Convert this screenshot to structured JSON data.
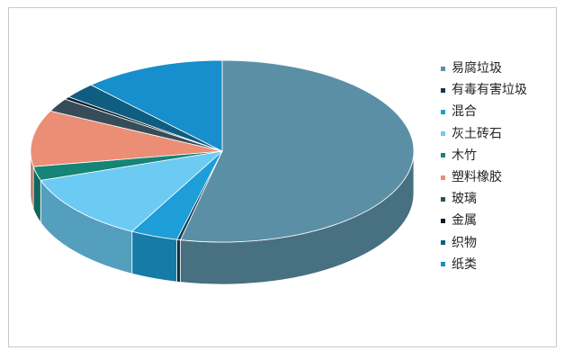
{
  "chart_data": {
    "type": "pie",
    "title": "",
    "legend_position": "right",
    "categories": [
      "易腐垃圾",
      "有毒有害垃圾",
      "混合",
      "灰土砖石",
      "木竹",
      "塑料橡胶",
      "玻璃",
      "金属",
      "织物",
      "纸类"
    ],
    "values": [
      53.5,
      0.3,
      4.0,
      12.0,
      2.5,
      10.0,
      2.4,
      0.5,
      2.8,
      12.0
    ],
    "colors": [
      "#5b8fa6",
      "#103a4f",
      "#1e9ed8",
      "#6ccbf3",
      "#168477",
      "#ec8d76",
      "#364d59",
      "#081e2a",
      "#0f5d80",
      "#168fcc"
    ]
  }
}
